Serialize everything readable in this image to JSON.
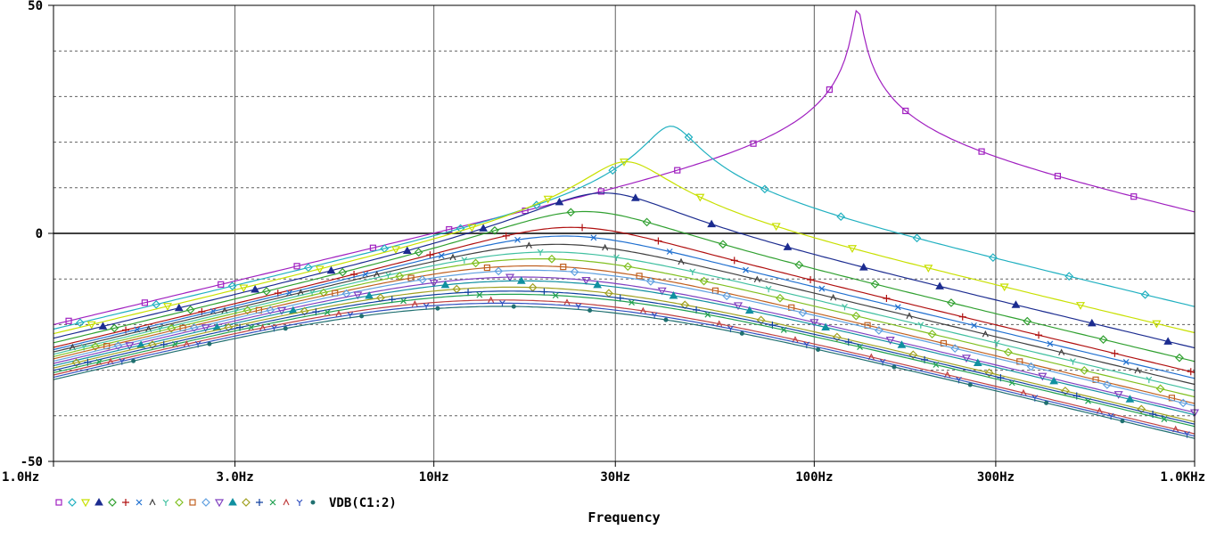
{
  "chart_data": {
    "type": "line",
    "xscale": "log",
    "xlim": [
      1,
      1000
    ],
    "ylim": [
      -50,
      50
    ],
    "xticks": [
      {
        "value": 1,
        "label": "1.0Hz"
      },
      {
        "value": 3,
        "label": "3.0Hz"
      },
      {
        "value": 10,
        "label": "10Hz"
      },
      {
        "value": 30,
        "label": "30Hz"
      },
      {
        "value": 100,
        "label": "100Hz"
      },
      {
        "value": 300,
        "label": "300Hz"
      },
      {
        "value": 1000,
        "label": "1.0KHz"
      }
    ],
    "yticks": [
      {
        "value": 50,
        "label": "50"
      },
      {
        "value": 0,
        "label": "0"
      },
      {
        "value": -50,
        "label": "-50"
      }
    ],
    "ygrid": [
      40,
      30,
      20,
      10,
      0,
      -10,
      -20,
      -30,
      -40
    ],
    "xlabel": "Frequency",
    "legend_label": "VDB(C1:2)",
    "grid": true,
    "series": [
      {
        "color": "#a020c0",
        "marker": "square",
        "f0": 130,
        "dc": -20,
        "q": 23
      },
      {
        "color": "#20b0c0",
        "marker": "diamond",
        "f0": 42,
        "dc": -21,
        "q": 4
      },
      {
        "color": "#c8e000",
        "marker": "tri-down",
        "f0": 32,
        "dc": -22,
        "q": 2.4
      },
      {
        "color": "#1c2c90",
        "marker": "tri-up",
        "f0": 28,
        "dc": -23,
        "q": 1.4
      },
      {
        "color": "#30a030",
        "marker": "diamond",
        "f0": 25,
        "dc": -24,
        "q": 1.1
      },
      {
        "color": "#b01010",
        "marker": "plus",
        "f0": 23,
        "dc": -25,
        "q": 0.9
      },
      {
        "color": "#2070d0",
        "marker": "x",
        "f0": 22,
        "dc": -25.5,
        "q": 0.8
      },
      {
        "color": "#404040",
        "marker": "lambda",
        "f0": 21,
        "dc": -26,
        "q": 0.72
      },
      {
        "color": "#40c0a0",
        "marker": "y",
        "f0": 20,
        "dc": -26.5,
        "q": 0.66
      },
      {
        "color": "#80c020",
        "marker": "diamond",
        "f0": 19,
        "dc": -27,
        "q": 0.62
      },
      {
        "color": "#c06020",
        "marker": "square",
        "f0": 18,
        "dc": -27.5,
        "q": 0.58
      },
      {
        "color": "#60a0e0",
        "marker": "diamond",
        "f0": 18,
        "dc": -28,
        "q": 0.55
      },
      {
        "color": "#8040c0",
        "marker": "tri-down",
        "f0": 17,
        "dc": -28.5,
        "q": 0.52
      },
      {
        "color": "#1090a0",
        "marker": "tri-up",
        "f0": 17,
        "dc": -29,
        "q": 0.5
      },
      {
        "color": "#a0a020",
        "marker": "diamond",
        "f0": 16,
        "dc": -29.5,
        "q": 0.48
      },
      {
        "color": "#1040a0",
        "marker": "plus",
        "f0": 16,
        "dc": -30,
        "q": 0.46
      },
      {
        "color": "#20a050",
        "marker": "x",
        "f0": 16,
        "dc": -30.5,
        "q": 0.45
      },
      {
        "color": "#c04040",
        "marker": "lambda",
        "f0": 15,
        "dc": -31,
        "q": 0.44
      },
      {
        "color": "#3050c0",
        "marker": "y",
        "f0": 15,
        "dc": -31.5,
        "q": 0.43
      },
      {
        "color": "#207070",
        "marker": "dot",
        "f0": 15,
        "dc": -32,
        "q": 0.42
      }
    ]
  }
}
